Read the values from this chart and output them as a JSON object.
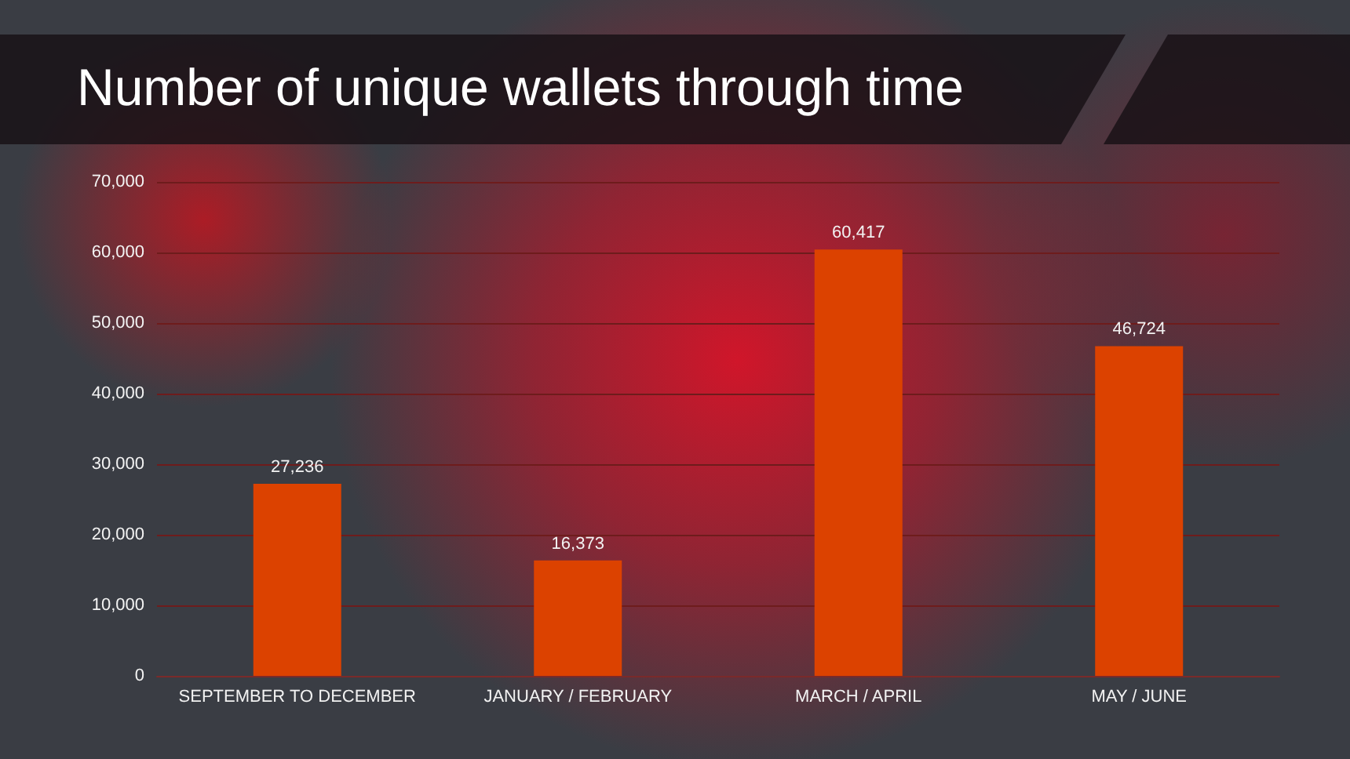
{
  "chart_data": {
    "type": "bar",
    "title": "Number of unique wallets through time",
    "categories": [
      "SEPTEMBER TO DECEMBER",
      "JANUARY / FEBRUARY",
      "MARCH / APRIL",
      "MAY / JUNE"
    ],
    "values": [
      27236,
      16373,
      60417,
      46724
    ],
    "value_labels": [
      "27,236",
      "16,373",
      "60,417",
      "46,724"
    ],
    "color": "#dc4200",
    "ylim": [
      0,
      70000
    ],
    "yticks": [
      0,
      {
        "value": 10000,
        "label": "10,000"
      },
      {
        "value": 20000,
        "label": "20,000"
      },
      {
        "value": 30000,
        "label": "30,000"
      },
      {
        "value": 40000,
        "label": "40,000"
      },
      {
        "value": 50000,
        "label": "50,000"
      },
      {
        "value": 60000,
        "label": "60,000"
      },
      {
        "value": 70000,
        "label": "70,000"
      }
    ],
    "grid": "y"
  }
}
